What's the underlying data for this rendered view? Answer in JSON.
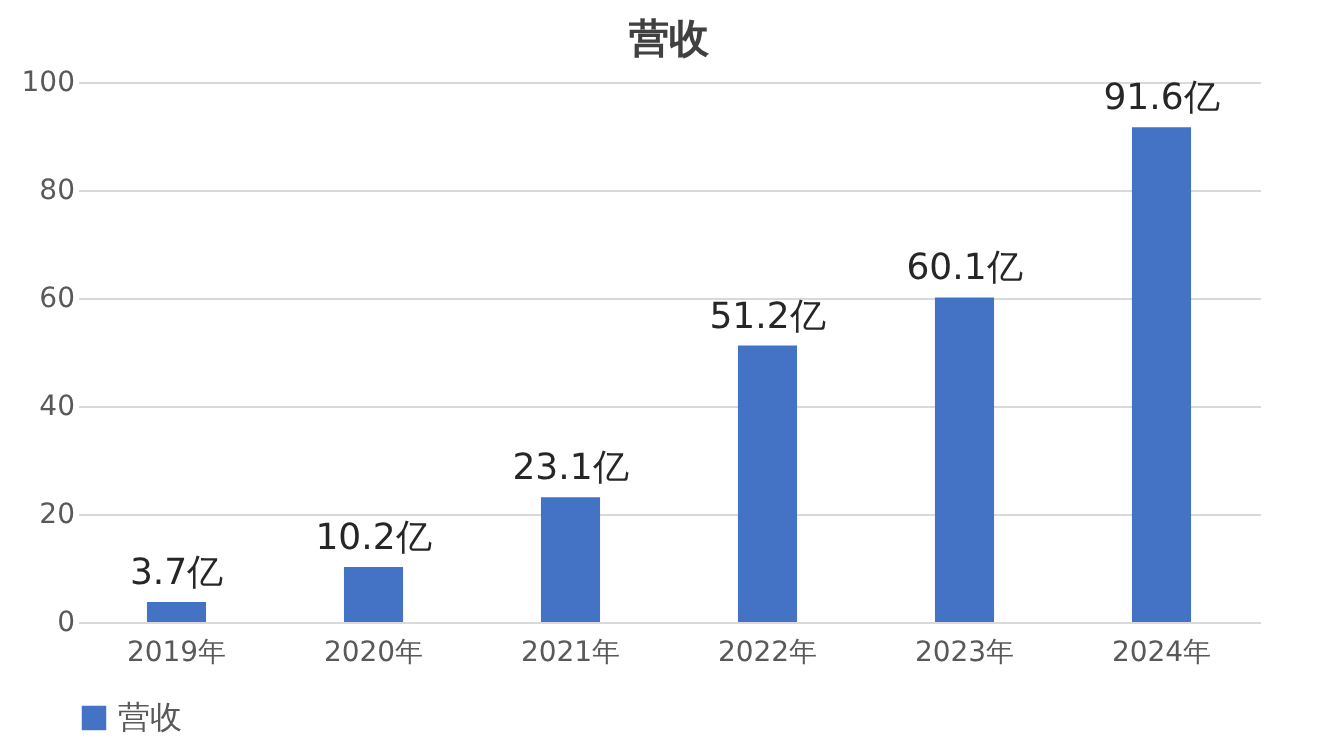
{
  "chart_data": {
    "type": "bar",
    "title": "营收",
    "categories": [
      "2019年",
      "2020年",
      "2021年",
      "2022年",
      "2023年",
      "2024年"
    ],
    "series": [
      {
        "name": "营收",
        "color": "#4472c4",
        "values": [
          3.7,
          10.2,
          23.1,
          51.2,
          60.1,
          91.6
        ],
        "value_labels": [
          "3.7亿",
          "10.2亿",
          "23.1亿",
          "51.2亿",
          "60.1亿",
          "91.6亿"
        ]
      }
    ],
    "ylim": [
      0,
      100
    ],
    "yticks": [
      0,
      20,
      40,
      60,
      80,
      100
    ],
    "grid": "y",
    "legend": "bottom"
  }
}
